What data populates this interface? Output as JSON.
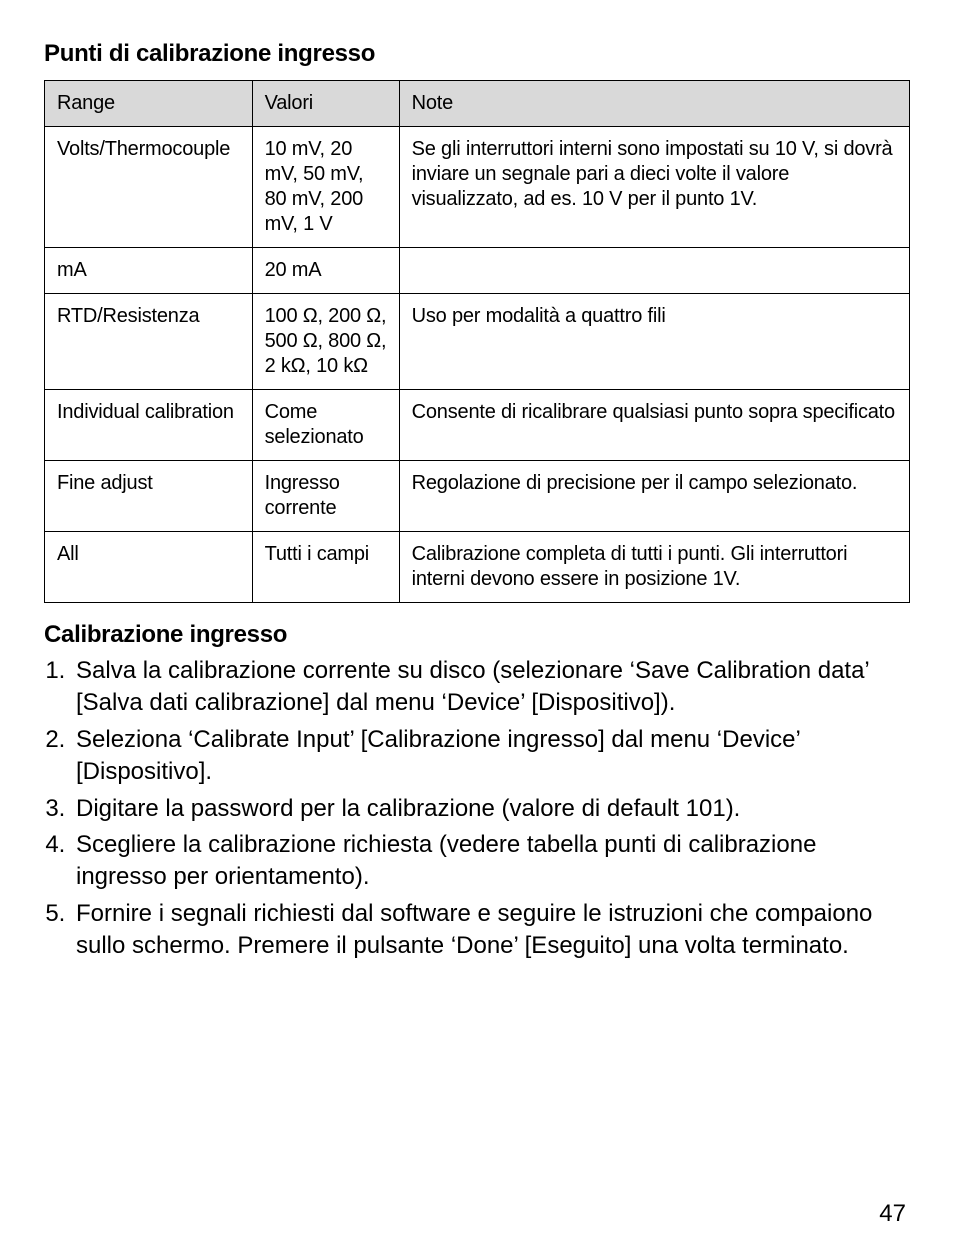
{
  "page": {
    "number": "47",
    "background_color": "#ffffff",
    "text_color": "#000000"
  },
  "section1": {
    "title": "Punti di calibrazione ingresso"
  },
  "table": {
    "header_bg": "#d9d9d9",
    "border_color": "#000000",
    "columns": [
      "Range",
      "Valori",
      "Note"
    ],
    "rows": [
      {
        "range": "Volts/Thermocouple",
        "valori": "10 mV, 20 mV, 50 mV, 80 mV, 200 mV, 1 V",
        "note": "Se gli interruttori interni sono impostati su 10 V, si dovrà inviare un segnale pari a dieci volte il valore visualizzato, ad es. 10 V per il punto 1V."
      },
      {
        "range": "mA",
        "valori": "20 mA",
        "note": ""
      },
      {
        "range": "RTD/Resistenza",
        "valori": "100 Ω, 200 Ω, 500 Ω, 800 Ω, 2 kΩ, 10 kΩ",
        "note": "Uso per modalità a quattro fili"
      },
      {
        "range": "Individual calibration",
        "valori": "Come selezionato",
        "note": "Consente di ricalibrare qualsiasi punto sopra specificato"
      },
      {
        "range": "Fine adjust",
        "valori": "Ingresso corrente",
        "note": "Regolazione di precisione per il campo selezionato."
      },
      {
        "range": "All",
        "valori": "Tutti i campi",
        "note": "Calibrazione completa di tutti i punti. Gli interruttori interni devono essere in posizione 1V."
      }
    ]
  },
  "section2": {
    "title": "Calibrazione ingresso",
    "steps": [
      "Salva la calibrazione corrente su disco (selezionare ‘Save Calibration data’ [Salva dati calibrazione] dal menu ‘Device’ [Dispositivo]).",
      "Seleziona ‘Calibrate Input’ [Calibrazione ingresso] dal menu ‘Device’ [Dispositivo].",
      "Digitare la password per la calibrazione (valore di default 101).",
      "Scegliere la calibrazione richiesta (vedere tabella punti di calibrazione ingresso per orientamento).",
      "Fornire i segnali richiesti dal software e seguire le istruzioni che compaiono sullo schermo. Premere il pulsante ‘Done’ [Eseguito] una volta terminato."
    ]
  }
}
